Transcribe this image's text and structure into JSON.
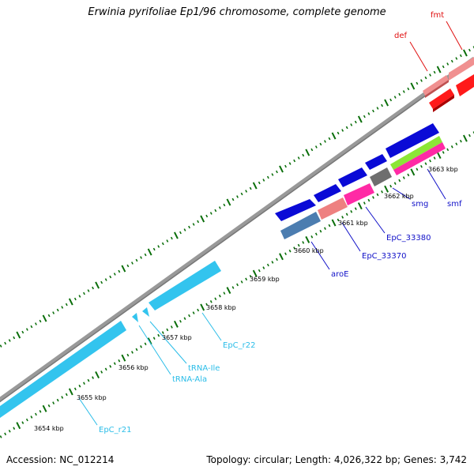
{
  "title": "Erwinia pyrifoliae Ep1/96 chromosome, complete genome",
  "footer": {
    "accession": "Accession: NC_012214",
    "summary": "Topology: circular; Length: 4,026,322 bp; Genes: 3,742"
  },
  "colors": {
    "backbone": "#888888",
    "tick": "#0a6e0a",
    "red_gene": "#ff1a1a",
    "pink_gene": "#ee8080",
    "blue_gene": "#0a0ad6",
    "rna_gene": "#33c4ee",
    "steel_gene": "#4c7db0",
    "magenta_gene": "#ff2aa5",
    "grey_gene": "#6e6e6e",
    "lime_gene": "#8ce636"
  },
  "kbp_labels": [
    "3654 kbp",
    "3655 kbp",
    "3656 kbp",
    "3657 kbp",
    "3658 kbp",
    "3659 kbp",
    "3660 kbp",
    "3661 kbp",
    "3662 kbp",
    "3663 kbp"
  ],
  "gene_labels": [
    {
      "text": "fmt",
      "color": "#e01010"
    },
    {
      "text": "def",
      "color": "#e01010"
    },
    {
      "text": "smf",
      "color": "#1010c8"
    },
    {
      "text": "smg",
      "color": "#1010c8"
    },
    {
      "text": "EpC_33380",
      "color": "#1010c8"
    },
    {
      "text": "EpC_33370",
      "color": "#1010c8"
    },
    {
      "text": "aroE",
      "color": "#1010c8"
    },
    {
      "text": "EpC_r22",
      "color": "#2bbde8"
    },
    {
      "text": "tRNA-Ile",
      "color": "#2bbde8"
    },
    {
      "text": "tRNA-Ala",
      "color": "#2bbde8"
    },
    {
      "text": "EpC_r21",
      "color": "#2bbde8"
    }
  ]
}
